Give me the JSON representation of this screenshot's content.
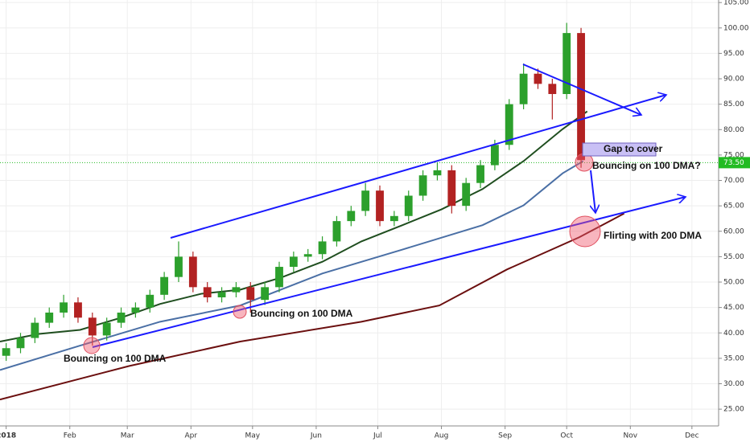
{
  "chart_data": {
    "type": "candlestick",
    "xlim": [
      -2,
      348
    ],
    "ylim": [
      21.7,
      105.5
    ],
    "xticks": [
      {
        "value": 1,
        "label": "2018"
      },
      {
        "value": 32,
        "label": "Feb"
      },
      {
        "value": 60,
        "label": "Mar"
      },
      {
        "value": 91,
        "label": "Apr"
      },
      {
        "value": 121,
        "label": "May"
      },
      {
        "value": 152,
        "label": "Jun"
      },
      {
        "value": 182,
        "label": "Jul"
      },
      {
        "value": 213,
        "label": "Aug"
      },
      {
        "value": 244,
        "label": "Sep"
      },
      {
        "value": 274,
        "label": "Oct"
      },
      {
        "value": 305,
        "label": "Nov"
      },
      {
        "value": 335,
        "label": "Dec"
      }
    ],
    "yticks": [
      {
        "value": 25,
        "label": "25.00"
      },
      {
        "value": 30,
        "label": "30.00"
      },
      {
        "value": 35,
        "label": "35.00"
      },
      {
        "value": 40,
        "label": "40.00"
      },
      {
        "value": 45,
        "label": "45.00"
      },
      {
        "value": 50,
        "label": "50.00"
      },
      {
        "value": 55,
        "label": "55.00"
      },
      {
        "value": 60,
        "label": "60.00"
      },
      {
        "value": 65,
        "label": "65.00"
      },
      {
        "value": 70,
        "label": "70.00"
      },
      {
        "value": 75,
        "label": "75.00"
      },
      {
        "value": 80,
        "label": "80.00"
      },
      {
        "value": 85,
        "label": "85.00"
      },
      {
        "value": 90,
        "label": "90.00"
      },
      {
        "value": 95,
        "label": "95.00"
      },
      {
        "value": 100,
        "label": "100.00"
      },
      {
        "value": 105,
        "label": "105.00"
      }
    ],
    "up_color": "#2ca02c",
    "down_color": "#b22222",
    "x": [
      1,
      8,
      15,
      22,
      29,
      36,
      43,
      50,
      57,
      64,
      71,
      78,
      85,
      92,
      99,
      106,
      113,
      120,
      127,
      134,
      141,
      148,
      155,
      162,
      169,
      176,
      183,
      190,
      197,
      204,
      211,
      218,
      225,
      232,
      239,
      246,
      253,
      260,
      267,
      274,
      281
    ],
    "open": [
      35.5,
      37,
      39,
      42,
      44,
      46,
      43,
      39.5,
      42,
      44,
      45,
      47.5,
      51,
      55,
      49,
      47,
      48,
      49,
      46.5,
      49,
      53,
      55,
      55.5,
      58,
      62,
      64,
      68,
      62,
      63,
      67,
      71,
      72,
      65,
      69.5,
      73,
      77,
      85,
      91,
      89,
      87,
      99
    ],
    "high": [
      38,
      40,
      43,
      45,
      47.5,
      47,
      44,
      43,
      45,
      46,
      48.5,
      52,
      58,
      56,
      50,
      49,
      50,
      50,
      50,
      54,
      56,
      56.5,
      59,
      63,
      65,
      69.5,
      69,
      64,
      68,
      72,
      73.5,
      73,
      70.5,
      74,
      78,
      86,
      93,
      92,
      90,
      101,
      100
    ],
    "low": [
      34.5,
      36,
      38,
      41,
      43,
      42,
      37.5,
      38.5,
      41,
      43,
      44,
      46.5,
      50,
      48,
      46,
      46,
      47,
      44,
      45.5,
      48,
      52,
      54,
      54.5,
      57,
      61,
      63,
      61,
      61,
      62,
      66,
      70,
      63.5,
      64,
      68.5,
      72,
      76,
      84,
      88,
      82,
      86,
      72.5
    ],
    "close": [
      37,
      39,
      42,
      44,
      46,
      43,
      39.5,
      42,
      44,
      45,
      47.5,
      51,
      55,
      49,
      47,
      48,
      49,
      46.5,
      49,
      53,
      55,
      55.5,
      58,
      62,
      64,
      68,
      62,
      63,
      67,
      71,
      72,
      65,
      69.5,
      73,
      77,
      85,
      91,
      89,
      87,
      99,
      74
    ],
    "overlays": [
      {
        "color": "#1f4e1f",
        "x": [
          -2,
          17,
          37,
          57,
          76,
          96,
          115,
          135,
          155,
          174,
          194,
          213,
          233,
          253,
          272,
          284
        ],
        "values": [
          38.3,
          39.8,
          40.6,
          43,
          45.7,
          47.7,
          48.5,
          50.9,
          54,
          58,
          61.2,
          64.3,
          68.3,
          73.8,
          80.1,
          83.6
        ]
      },
      {
        "color": "#4a6fa5",
        "x": [
          -2,
          37,
          76,
          115,
          155,
          194,
          233,
          253,
          272,
          282
        ],
        "values": [
          32.7,
          37.5,
          42.2,
          45.4,
          51.7,
          56.4,
          61.2,
          65.1,
          71.4,
          73.8
        ]
      },
      {
        "color": "#6b0f0f",
        "x": [
          -2,
          61,
          115,
          174,
          212,
          245,
          280,
          302
        ],
        "values": [
          26.9,
          33.5,
          38.3,
          42.2,
          45.4,
          52.5,
          58.8,
          63.5
        ]
      }
    ],
    "price_line": {
      "value": 73.5,
      "label": "73.50",
      "color": "#22bb22"
    },
    "annotations": [
      "Bouncing on 100 DMA",
      "Bouncing on 100 DMA",
      "Bouncing on 100 DMA?",
      "Gap to cover",
      "Flirting with 200 DMA"
    ]
  }
}
